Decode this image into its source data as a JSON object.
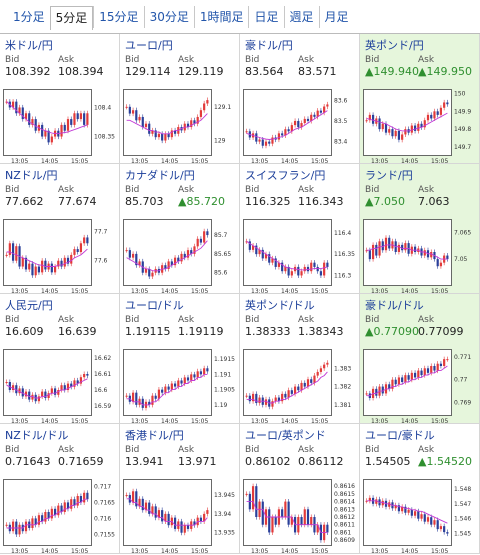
{
  "tabs": [
    {
      "label": "1分足",
      "active": false
    },
    {
      "label": "5分足",
      "active": true
    },
    {
      "label": "15分足",
      "active": false
    },
    {
      "label": "30分足",
      "active": false
    },
    {
      "label": "1時間足",
      "active": false
    },
    {
      "label": "日足",
      "active": false
    },
    {
      "label": "週足",
      "active": false
    },
    {
      "label": "月足",
      "active": false
    }
  ],
  "labels": {
    "bid": "Bid",
    "ask": "Ask",
    "up_marker": "▲"
  },
  "colors": {
    "link": "#1a3d99",
    "up": "#2f8f2f",
    "highlight": "#e6f6dc",
    "candle_up": "#e23a3a",
    "candle_down": "#2a3f9a",
    "ma": "#c23ad6"
  },
  "x_labels": [
    "13:05",
    "14:05",
    "15:05"
  ],
  "pairs": [
    {
      "name": "米ドル/円",
      "flag": "us-flag",
      "bid": "108.392",
      "ask": "108.394",
      "bid_up": false,
      "ask_up": false,
      "highlight": false,
      "y_ticks": [
        "108.4",
        "108.35"
      ],
      "ylim": [
        108.32,
        108.43
      ],
      "closes": [
        108.41,
        108.4,
        108.41,
        108.39,
        108.4,
        108.38,
        108.39,
        108.37,
        108.38,
        108.36,
        108.37,
        108.35,
        108.36,
        108.34,
        108.35,
        108.36,
        108.35,
        108.37,
        108.36,
        108.38,
        108.37,
        108.39,
        108.38,
        108.39,
        108.37,
        108.39
      ],
      "ma": [
        108.41,
        108.405,
        108.4,
        108.395,
        108.39,
        108.385,
        108.38,
        108.375,
        108.372,
        108.368,
        108.365,
        108.362,
        108.36,
        108.358,
        108.356,
        108.355,
        108.355,
        108.356,
        108.357,
        108.358,
        108.36,
        108.362,
        108.364,
        108.366,
        108.368,
        108.37
      ]
    },
    {
      "name": "ユーロ/円",
      "flag": "eu-flag",
      "bid": "129.114",
      "ask": "129.119",
      "bid_up": false,
      "ask_up": false,
      "highlight": false,
      "y_ticks": [
        "129.1",
        "129"
      ],
      "ylim": [
        128.96,
        129.15
      ],
      "closes": [
        129.1,
        129.08,
        129.09,
        129.06,
        129.07,
        129.04,
        129.05,
        129.02,
        129.03,
        129.01,
        129.02,
        129.0,
        129.02,
        129.01,
        129.03,
        129.02,
        129.04,
        129.03,
        129.05,
        129.04,
        129.06,
        129.05,
        129.07,
        129.09,
        129.11,
        129.12
      ],
      "ma": [
        129.06,
        129.06,
        129.055,
        129.05,
        129.045,
        129.04,
        129.035,
        129.03,
        129.03,
        129.025,
        129.025,
        129.02,
        129.02,
        129.02,
        129.025,
        129.03,
        129.03,
        129.035,
        129.04,
        129.04,
        129.045,
        129.05,
        129.055,
        129.06,
        129.07,
        129.08
      ]
    },
    {
      "name": "豪ドル/円",
      "flag": "au-flag",
      "bid": "83.564",
      "ask": "83.571",
      "bid_up": false,
      "ask_up": false,
      "highlight": false,
      "y_ticks": [
        "83.6",
        "83.5",
        "83.4"
      ],
      "ylim": [
        83.34,
        83.65
      ],
      "closes": [
        83.45,
        83.42,
        83.44,
        83.4,
        83.41,
        83.38,
        83.4,
        83.39,
        83.42,
        83.41,
        83.44,
        83.43,
        83.46,
        83.45,
        83.48,
        83.5,
        83.47,
        83.49,
        83.51,
        83.5,
        83.53,
        83.52,
        83.55,
        83.54,
        83.57,
        83.58
      ],
      "ma": [
        83.44,
        83.435,
        83.43,
        83.425,
        83.42,
        83.415,
        83.412,
        83.41,
        83.412,
        83.415,
        83.42,
        83.425,
        83.43,
        83.44,
        83.45,
        83.46,
        83.465,
        83.47,
        83.48,
        83.49,
        83.5,
        83.51,
        83.52,
        83.53,
        83.54,
        83.55
      ]
    },
    {
      "name": "英ポンド/円",
      "flag": "uk-flag",
      "bid": "149.940",
      "ask": "149.950",
      "bid_up": true,
      "ask_up": true,
      "highlight": true,
      "y_ticks": [
        "150",
        "149.9",
        "149.8",
        "149.7"
      ],
      "ylim": [
        149.66,
        150.02
      ],
      "closes": [
        149.85,
        149.88,
        149.83,
        149.86,
        149.8,
        149.83,
        149.78,
        149.8,
        149.76,
        149.79,
        149.74,
        149.77,
        149.8,
        149.78,
        149.82,
        149.79,
        149.83,
        149.81,
        149.85,
        149.88,
        149.86,
        149.9,
        149.88,
        149.92,
        149.95,
        149.94
      ],
      "ma": [
        149.86,
        149.855,
        149.85,
        149.845,
        149.84,
        149.835,
        149.83,
        149.82,
        149.81,
        149.8,
        149.795,
        149.79,
        149.79,
        149.79,
        149.795,
        149.8,
        149.805,
        149.81,
        149.82,
        149.83,
        149.84,
        149.85,
        149.86,
        149.87,
        149.88,
        149.89
      ]
    },
    {
      "name": "NZドル/円",
      "flag": "nz-flag",
      "bid": "77.662",
      "ask": "77.674",
      "bid_up": false,
      "ask_up": false,
      "highlight": false,
      "y_ticks": [
        "77.7",
        "77.6"
      ],
      "ylim": [
        77.52,
        77.74
      ],
      "closes": [
        77.62,
        77.66,
        77.6,
        77.65,
        77.58,
        77.61,
        77.57,
        77.59,
        77.55,
        77.58,
        77.56,
        77.6,
        77.57,
        77.59,
        77.56,
        77.58,
        77.6,
        77.58,
        77.61,
        77.59,
        77.62,
        77.64,
        77.63,
        77.66,
        77.68,
        77.66
      ],
      "ma": [
        77.63,
        77.63,
        77.625,
        77.62,
        77.615,
        77.61,
        77.605,
        77.6,
        77.595,
        77.59,
        77.585,
        77.585,
        77.58,
        77.58,
        77.58,
        77.58,
        77.585,
        77.585,
        77.59,
        77.595,
        77.6,
        77.61,
        77.615,
        77.62,
        77.63,
        77.64
      ]
    },
    {
      "name": "カナダドル/円",
      "flag": "ca-flag",
      "bid": "85.703",
      "ask": "85.720",
      "bid_up": false,
      "ask_up": true,
      "highlight": false,
      "y_ticks": [
        "85.7",
        "85.65",
        "85.6"
      ],
      "ylim": [
        85.57,
        85.74
      ],
      "closes": [
        85.66,
        85.64,
        85.65,
        85.62,
        85.63,
        85.6,
        85.61,
        85.59,
        85.6,
        85.61,
        85.6,
        85.62,
        85.61,
        85.63,
        85.62,
        85.64,
        85.63,
        85.65,
        85.64,
        85.66,
        85.65,
        85.67,
        85.69,
        85.68,
        85.71,
        85.7
      ],
      "ma": [
        85.64,
        85.635,
        85.63,
        85.625,
        85.62,
        85.615,
        85.61,
        85.61,
        85.605,
        85.605,
        85.605,
        85.61,
        85.61,
        85.615,
        85.62,
        85.625,
        85.63,
        85.635,
        85.64,
        85.645,
        85.65,
        85.655,
        85.66,
        85.665,
        85.675,
        85.685
      ]
    },
    {
      "name": "スイスフラン/円",
      "flag": "ch-flag",
      "bid": "116.325",
      "ask": "116.343",
      "bid_up": false,
      "ask_up": false,
      "highlight": false,
      "y_ticks": [
        "116.4",
        "116.35",
        "116.3"
      ],
      "ylim": [
        116.28,
        116.43
      ],
      "closes": [
        116.38,
        116.36,
        116.37,
        116.35,
        116.36,
        116.34,
        116.35,
        116.33,
        116.34,
        116.32,
        116.33,
        116.31,
        116.32,
        116.3,
        116.31,
        116.32,
        116.3,
        116.31,
        116.32,
        116.31,
        116.33,
        116.32,
        116.31,
        116.3,
        116.33,
        116.32
      ],
      "ma": [
        116.38,
        116.375,
        116.37,
        116.365,
        116.36,
        116.355,
        116.35,
        116.345,
        116.34,
        116.335,
        116.33,
        116.325,
        116.32,
        116.318,
        116.316,
        116.315,
        116.314,
        116.313,
        116.313,
        116.314,
        116.315,
        116.316,
        116.316,
        116.316,
        116.318,
        116.32
      ]
    },
    {
      "name": "ランド/円",
      "flag": "za-flag",
      "bid": "7.050",
      "ask": "7.063",
      "bid_up": true,
      "ask_up": false,
      "highlight": true,
      "y_ticks": [
        "7.065",
        "7.05"
      ],
      "ylim": [
        7.036,
        7.072
      ],
      "closes": [
        7.055,
        7.05,
        7.058,
        7.052,
        7.06,
        7.055,
        7.062,
        7.056,
        7.06,
        7.054,
        7.058,
        7.055,
        7.059,
        7.053,
        7.057,
        7.054,
        7.056,
        7.052,
        7.055,
        7.051,
        7.054,
        7.05,
        7.046,
        7.048,
        7.052,
        7.05
      ],
      "ma": [
        7.055,
        7.055,
        7.056,
        7.056,
        7.057,
        7.057,
        7.058,
        7.058,
        7.058,
        7.057,
        7.057,
        7.056,
        7.056,
        7.056,
        7.055,
        7.055,
        7.055,
        7.054,
        7.054,
        7.053,
        7.053,
        7.052,
        7.051,
        7.05,
        7.05,
        7.05
      ]
    },
    {
      "name": "人民元/円",
      "flag": "cn-flag",
      "bid": "16.609",
      "ask": "16.639",
      "bid_up": false,
      "ask_up": false,
      "highlight": false,
      "y_ticks": [
        "16.62",
        "16.61",
        "16.6",
        "16.59"
      ],
      "ylim": [
        16.585,
        16.625
      ],
      "closes": [
        16.605,
        16.6,
        16.603,
        16.598,
        16.601,
        16.596,
        16.599,
        16.594,
        16.597,
        16.593,
        16.596,
        16.599,
        16.595,
        16.598,
        16.601,
        16.597,
        16.6,
        16.603,
        16.6,
        16.604,
        16.602,
        16.606,
        16.604,
        16.608,
        16.61,
        16.609
      ],
      "ma": [
        16.603,
        16.602,
        16.601,
        16.6,
        16.599,
        16.598,
        16.597,
        16.596,
        16.596,
        16.595,
        16.595,
        16.596,
        16.596,
        16.597,
        16.598,
        16.598,
        16.599,
        16.6,
        16.6,
        16.601,
        16.602,
        16.603,
        16.604,
        16.605,
        16.606,
        16.607
      ]
    },
    {
      "name": "ユーロ/ドル",
      "flag": "eu-flag",
      "bid": "1.19115",
      "ask": "1.19119",
      "bid_up": false,
      "ask_up": false,
      "highlight": false,
      "y_ticks": [
        "1.1915",
        "1.191",
        "1.1905",
        "1.19"
      ],
      "ylim": [
        1.1897,
        1.1918
      ],
      "closes": [
        1.1903,
        1.1901,
        1.1904,
        1.19,
        1.1902,
        1.1899,
        1.1901,
        1.19,
        1.1903,
        1.1902,
        1.1905,
        1.1904,
        1.1906,
        1.1905,
        1.1907,
        1.1906,
        1.1908,
        1.1907,
        1.1909,
        1.1908,
        1.191,
        1.1909,
        1.1911,
        1.191,
        1.1912,
        1.1911
      ],
      "ma": [
        1.1902,
        1.1902,
        1.1901,
        1.1901,
        1.1901,
        1.19,
        1.19,
        1.19,
        1.1901,
        1.1901,
        1.1902,
        1.1903,
        1.1904,
        1.1904,
        1.1905,
        1.1905,
        1.1906,
        1.1906,
        1.1907,
        1.1907,
        1.1908,
        1.1908,
        1.1909,
        1.1909,
        1.191,
        1.191
      ]
    },
    {
      "name": "英ポンド/ドル",
      "flag": "uk-flag",
      "bid": "1.38333",
      "ask": "1.38343",
      "bid_up": false,
      "ask_up": false,
      "highlight": false,
      "y_ticks": [
        "1.383",
        "1.382",
        "1.381"
      ],
      "ylim": [
        1.3805,
        1.384
      ],
      "closes": [
        1.3815,
        1.3812,
        1.3816,
        1.3811,
        1.3814,
        1.381,
        1.3813,
        1.3809,
        1.3812,
        1.3814,
        1.3812,
        1.3816,
        1.3814,
        1.3818,
        1.3816,
        1.382,
        1.3818,
        1.3822,
        1.382,
        1.3824,
        1.3822,
        1.3826,
        1.3828,
        1.383,
        1.3832,
        1.3833
      ],
      "ma": [
        1.3813,
        1.3813,
        1.3813,
        1.3812,
        1.3812,
        1.3812,
        1.3812,
        1.3811,
        1.3811,
        1.3812,
        1.3812,
        1.3813,
        1.3813,
        1.3814,
        1.3815,
        1.3816,
        1.3817,
        1.3818,
        1.3819,
        1.382,
        1.3821,
        1.3822,
        1.3823,
        1.3825,
        1.3826,
        1.3828
      ]
    },
    {
      "name": "豪ドル/ドル",
      "flag": "au-flag",
      "bid": "0.77090",
      "ask": "0.77099",
      "bid_up": true,
      "ask_up": false,
      "highlight": true,
      "y_ticks": [
        "0.771",
        "0.77",
        "0.769"
      ],
      "ylim": [
        0.7685,
        0.7713
      ],
      "closes": [
        0.7694,
        0.7692,
        0.7696,
        0.7693,
        0.7697,
        0.7694,
        0.7698,
        0.7696,
        0.77,
        0.7698,
        0.7701,
        0.7699,
        0.7702,
        0.77,
        0.7703,
        0.7701,
        0.7704,
        0.7702,
        0.7705,
        0.7703,
        0.7706,
        0.7704,
        0.7707,
        0.7706,
        0.7709,
        0.7709
      ],
      "ma": [
        0.7693,
        0.7693,
        0.7694,
        0.7694,
        0.7695,
        0.7695,
        0.7696,
        0.7696,
        0.7697,
        0.7697,
        0.7698,
        0.7698,
        0.7699,
        0.7699,
        0.77,
        0.77,
        0.7701,
        0.7701,
        0.7702,
        0.7702,
        0.7703,
        0.7703,
        0.7704,
        0.7704,
        0.7705,
        0.7706
      ]
    },
    {
      "name": "NZドル/ドル",
      "flag": "nz-flag",
      "bid": "0.71643",
      "ask": "0.71659",
      "bid_up": false,
      "ask_up": false,
      "highlight": false,
      "y_ticks": [
        "0.717",
        "0.7165",
        "0.716",
        "0.7155"
      ],
      "ylim": [
        0.7152,
        0.7172
      ],
      "closes": [
        0.7158,
        0.7156,
        0.7159,
        0.7155,
        0.7158,
        0.7156,
        0.7159,
        0.7157,
        0.716,
        0.7158,
        0.7161,
        0.7159,
        0.7162,
        0.716,
        0.7163,
        0.7161,
        0.7164,
        0.7162,
        0.7165,
        0.7163,
        0.7166,
        0.7164,
        0.7167,
        0.7165,
        0.7168,
        0.7166
      ],
      "ma": [
        0.7157,
        0.7157,
        0.7157,
        0.7157,
        0.7157,
        0.7157,
        0.7158,
        0.7158,
        0.7158,
        0.7158,
        0.7159,
        0.7159,
        0.716,
        0.716,
        0.7161,
        0.7161,
        0.7162,
        0.7162,
        0.7163,
        0.7163,
        0.7164,
        0.7164,
        0.7165,
        0.7165,
        0.7166,
        0.7166
      ]
    },
    {
      "name": "香港ドル/円",
      "flag": "hk-flag",
      "bid": "13.941",
      "ask": "13.971",
      "bid_up": false,
      "ask_up": false,
      "highlight": false,
      "y_ticks": [
        "13.945",
        "13.94",
        "13.935"
      ],
      "ylim": [
        13.932,
        13.949
      ],
      "closes": [
        13.945,
        13.943,
        13.946,
        13.942,
        13.944,
        13.941,
        13.943,
        13.94,
        13.942,
        13.939,
        13.941,
        13.938,
        13.94,
        13.937,
        13.939,
        13.936,
        13.938,
        13.935,
        13.937,
        13.936,
        13.938,
        13.937,
        13.939,
        13.938,
        13.94,
        13.941
      ],
      "ma": [
        13.944,
        13.944,
        13.943,
        13.943,
        13.942,
        13.942,
        13.941,
        13.941,
        13.94,
        13.94,
        13.939,
        13.939,
        13.938,
        13.938,
        13.938,
        13.937,
        13.937,
        13.937,
        13.937,
        13.937,
        13.937,
        13.937,
        13.938,
        13.938,
        13.938,
        13.939
      ]
    },
    {
      "name": "ユーロ/英ポンド",
      "flag": "eu-flag",
      "bid": "0.86102",
      "ask": "0.86112",
      "bid_up": false,
      "ask_up": false,
      "highlight": false,
      "y_ticks": [
        "0.8616",
        "0.8615",
        "0.8614",
        "0.8613",
        "0.8612",
        "0.8611",
        "0.861",
        "0.8609"
      ],
      "ylim": [
        0.86085,
        0.86168
      ],
      "closes": [
        0.8615,
        0.8613,
        0.8616,
        0.8612,
        0.8614,
        0.8611,
        0.8613,
        0.861,
        0.8612,
        0.8611,
        0.8613,
        0.8612,
        0.8614,
        0.8611,
        0.8612,
        0.861,
        0.8612,
        0.8611,
        0.8613,
        0.8611,
        0.8612,
        0.861,
        0.8611,
        0.8609,
        0.8611,
        0.861
      ],
      "ma": [
        0.8614,
        0.8614,
        0.8614,
        0.8613,
        0.8613,
        0.8613,
        0.8612,
        0.8612,
        0.8612,
        0.8612,
        0.8612,
        0.8612,
        0.8612,
        0.8612,
        0.8612,
        0.8611,
        0.8611,
        0.8611,
        0.8611,
        0.8611,
        0.8611,
        0.8611,
        0.8611,
        0.861,
        0.861,
        0.861
      ]
    },
    {
      "name": "ユーロ/豪ドル",
      "flag": "eu-flag",
      "bid": "1.54505",
      "ask": "1.54520",
      "bid_up": false,
      "ask_up": true,
      "highlight": false,
      "y_ticks": [
        "1.548",
        "1.547",
        "1.546",
        "1.545"
      ],
      "ylim": [
        1.5443,
        1.5486
      ],
      "closes": [
        1.5472,
        1.5474,
        1.547,
        1.5473,
        1.5469,
        1.5472,
        1.5468,
        1.5471,
        1.5467,
        1.5469,
        1.5465,
        1.5468,
        1.5464,
        1.5466,
        1.5462,
        1.5465,
        1.546,
        1.5463,
        1.5458,
        1.5461,
        1.5456,
        1.5459,
        1.5453,
        1.5455,
        1.5451,
        1.545
      ],
      "ma": [
        1.5472,
        1.5472,
        1.5472,
        1.5472,
        1.5471,
        1.5471,
        1.547,
        1.547,
        1.5469,
        1.5469,
        1.5468,
        1.5468,
        1.5467,
        1.5467,
        1.5466,
        1.5466,
        1.5465,
        1.5465,
        1.5464,
        1.5463,
        1.5462,
        1.5461,
        1.546,
        1.5459,
        1.5458,
        1.5457
      ]
    }
  ]
}
